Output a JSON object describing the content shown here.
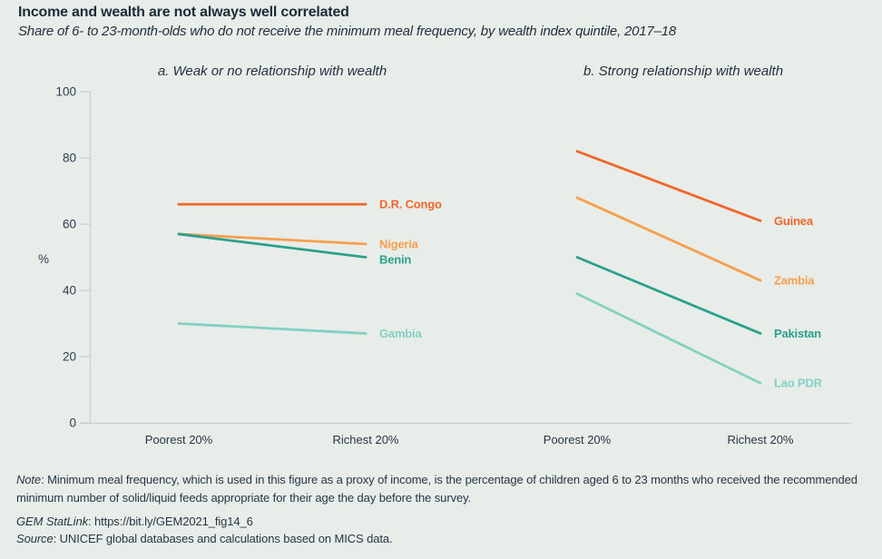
{
  "page": {
    "background": "#e8ede9",
    "text_dark": "#22313f",
    "axis_color": "#c6cfca"
  },
  "header": {
    "title": "Income and wealth are not always well correlated",
    "subtitle": "Share of 6- to 23-month-olds who do not receive the minimum meal frequency, by wealth index quintile, 2017–18"
  },
  "chart_data": {
    "type": "line",
    "ylabel": "%",
    "ylim": [
      0,
      100
    ],
    "yticks": [
      0,
      20,
      40,
      60,
      80,
      100
    ],
    "grid": "off",
    "legend_position": "right-of-line-end",
    "categories": [
      "Poorest 20%",
      "Richest 20%"
    ],
    "panels": [
      {
        "id": "a",
        "title": "a. Weak or no relationship with wealth",
        "series": [
          {
            "name": "D.R. Congo",
            "color": "#f2662b",
            "values": [
              66,
              66
            ]
          },
          {
            "name": "Nigeria",
            "color": "#f89f4d",
            "values": [
              57,
              54
            ]
          },
          {
            "name": "Benin",
            "color": "#2ba18c",
            "values": [
              57,
              50
            ]
          },
          {
            "name": "Gambia",
            "color": "#83d1c2",
            "values": [
              30,
              27
            ]
          }
        ]
      },
      {
        "id": "b",
        "title": "b. Strong relationship with wealth",
        "series": [
          {
            "name": "Guinea",
            "color": "#f2662b",
            "values": [
              82,
              61
            ]
          },
          {
            "name": "Zambia",
            "color": "#f89f4d",
            "values": [
              68,
              43
            ]
          },
          {
            "name": "Pakistan",
            "color": "#2ba18c",
            "values": [
              50,
              27
            ]
          },
          {
            "name": "Lao PDR",
            "color": "#83d1c2",
            "values": [
              39,
              12
            ]
          }
        ]
      }
    ]
  },
  "footer": {
    "note_label": "Note",
    "note_body": ": Minimum meal frequency, which is used in this figure as a proxy of income, is the percentage of children aged 6 to 23 months who received the recommended minimum number of solid/liquid feeds appropriate for their age the day before the survey.",
    "statlink_label": "GEM StatLink",
    "statlink_body": ": https://bit.ly/GEM2021_fig14_6",
    "source_label": "Source",
    "source_body": ": UNICEF global databases and calculations based on MICS data."
  }
}
